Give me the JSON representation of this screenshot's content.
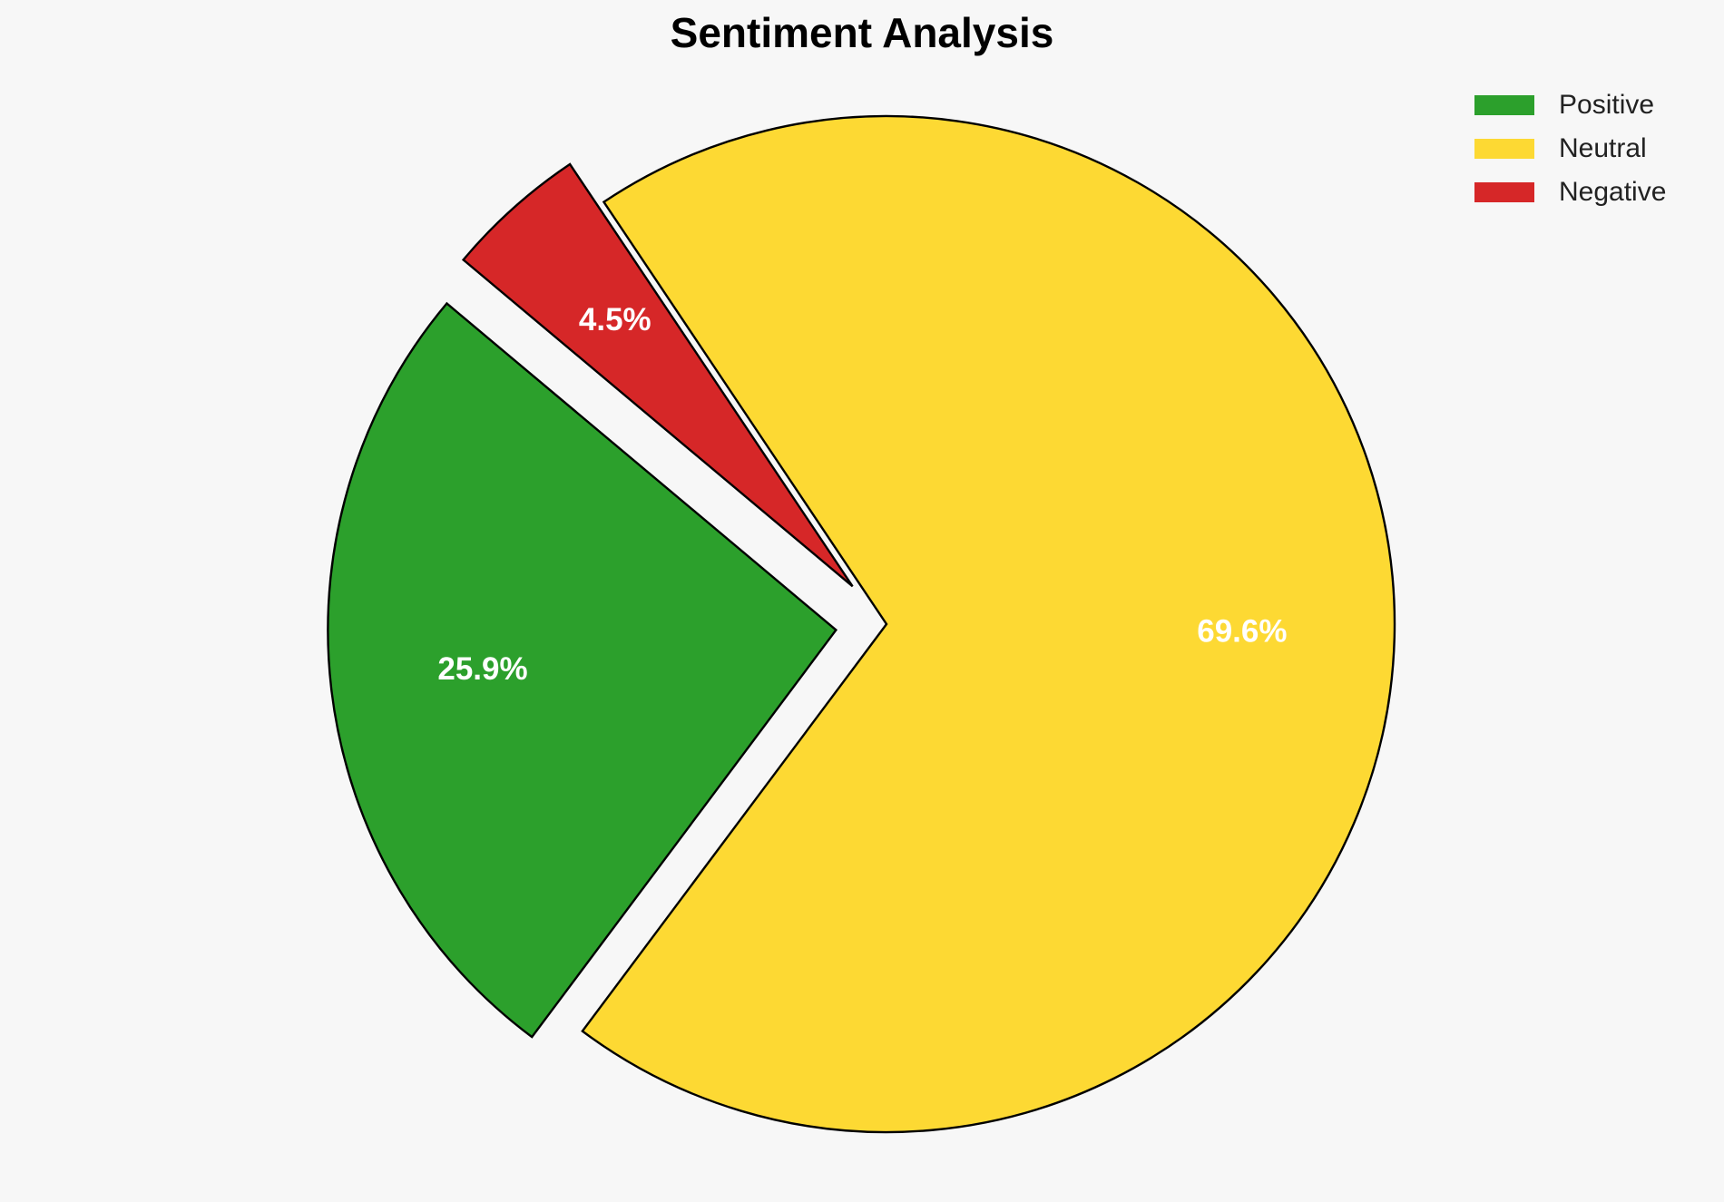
{
  "chart_data": {
    "type": "pie",
    "title": "Sentiment Analysis",
    "categories": [
      "Positive",
      "Neutral",
      "Negative"
    ],
    "values": [
      25.9,
      69.6,
      4.5
    ],
    "value_labels": [
      "25.9%",
      "69.6%",
      "4.5%"
    ],
    "colors": [
      "#2ca02c",
      "#fdd933",
      "#d62728"
    ],
    "legend": "upper right"
  }
}
